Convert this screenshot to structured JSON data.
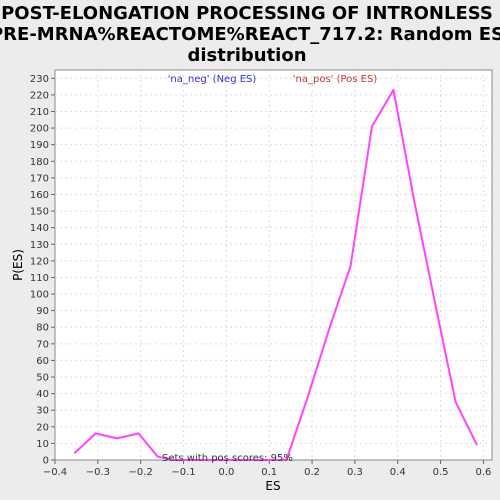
{
  "chart_data": {
    "type": "line",
    "title_lines": [
      "POST-ELONGATION PROCESSING OF INTRONLESS",
      "PRE-MRNA%REACTOME%REACT_717.2: Random ES",
      "distribution"
    ],
    "xlabel": "ES",
    "ylabel": "P(ES)",
    "xlim": [
      -0.4,
      0.62
    ],
    "ylim": [
      0,
      235
    ],
    "xticks": [
      -0.4,
      -0.3,
      -0.2,
      -0.1,
      0.0,
      0.1,
      0.2,
      0.3,
      0.4,
      0.5,
      0.6
    ],
    "xtick_labels": [
      "−0.4",
      "−0.3",
      "−0.2",
      "−0.1",
      "0.0",
      "0.1",
      "0.2",
      "0.3",
      "0.4",
      "0.5",
      "0.6"
    ],
    "yticks": [
      0,
      10,
      20,
      30,
      40,
      50,
      60,
      70,
      80,
      90,
      100,
      110,
      120,
      130,
      140,
      150,
      160,
      170,
      180,
      190,
      200,
      210,
      220,
      230
    ],
    "grid": true,
    "legend": [
      {
        "label": "'na_neg' (Neg ES)",
        "color": "#3333cc"
      },
      {
        "label": "'na_pos' (Pos ES)",
        "color": "#cc3333"
      }
    ],
    "annotation": "Sets with pos scores: 95%",
    "series": [
      {
        "color": "#ff44ff",
        "x": [
          -0.355,
          -0.305,
          -0.255,
          -0.205,
          -0.16,
          -0.12,
          0.0,
          0.14,
          0.19,
          0.24,
          0.29,
          0.34,
          0.39,
          0.44,
          0.49,
          0.535,
          0.585
        ],
        "y": [
          4,
          16,
          13,
          16,
          2,
          0,
          0,
          0,
          38,
          79,
          117,
          201,
          223,
          154,
          91,
          35,
          9
        ]
      }
    ]
  }
}
